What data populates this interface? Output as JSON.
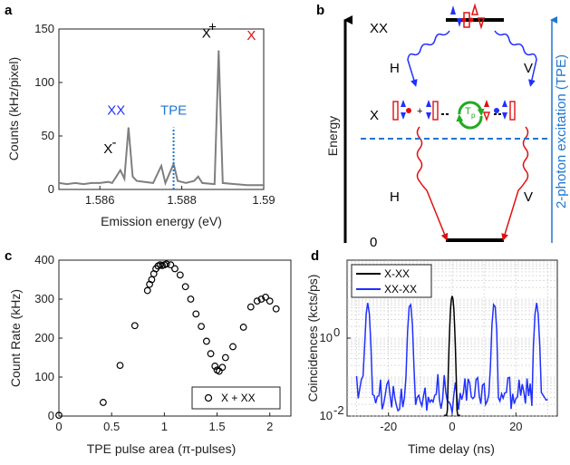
{
  "panel_letters": [
    "a",
    "b",
    "c",
    "d"
  ],
  "colors": {
    "gray": "#7f7f7f",
    "blue": "#1f30ff",
    "red": "#e01010",
    "tpe_blue": "#1f77d0",
    "green": "#22aa22"
  },
  "chart_data": [
    {
      "type": "line",
      "panel": "a",
      "xlabel": "Emission energy (eV)",
      "ylabel": "Counts (kHz/pixel)",
      "xlim": [
        1.585,
        1.59
      ],
      "ylim": [
        0,
        150
      ],
      "xticks": [
        1.586,
        1.588,
        1.59
      ],
      "xtick_labels": [
        "1.586",
        "1.588",
        "1.59"
      ],
      "yticks": [
        0,
        50,
        100,
        150
      ],
      "ytick_labels": [
        "0",
        "50",
        "100",
        "150"
      ],
      "series": [
        {
          "values": [
            [
              1.585,
              6
            ],
            [
              1.5852,
              5
            ],
            [
              1.5854,
              6
            ],
            [
              1.5856,
              5
            ],
            [
              1.5858,
              6
            ],
            [
              1.586,
              6
            ],
            [
              1.5862,
              7
            ],
            [
              1.5863,
              6
            ],
            [
              1.5865,
              18
            ],
            [
              1.5866,
              10
            ],
            [
              1.5867,
              58
            ],
            [
              1.5868,
              12
            ],
            [
              1.5869,
              8
            ],
            [
              1.5871,
              7
            ],
            [
              1.5873,
              6
            ],
            [
              1.5875,
              22
            ],
            [
              1.5876,
              6
            ],
            [
              1.5878,
              24
            ],
            [
              1.5879,
              8
            ],
            [
              1.5881,
              6
            ],
            [
              1.5883,
              8
            ],
            [
              1.5884,
              12
            ],
            [
              1.5885,
              6
            ],
            [
              1.5888,
              5
            ],
            [
              1.5889,
              130
            ],
            [
              1.589,
              6
            ],
            [
              1.5893,
              5
            ],
            [
              1.5896,
              4
            ],
            [
              1.5898,
              4
            ],
            [
              1.59,
              4
            ]
          ]
        }
      ],
      "annotations": [
        {
          "text": "XX",
          "x": 1.5864,
          "y": 70,
          "color": "#1f30ff"
        },
        {
          "text": "X",
          "x": 1.5862,
          "y": 34,
          "color": "#000000"
        },
        {
          "text": "-",
          "x": 1.58635,
          "y": 40,
          "color": "#000000"
        },
        {
          "text": "X",
          "x": 1.5886,
          "y": 142,
          "color": "#000000"
        },
        {
          "text": "+",
          "x": 1.58875,
          "y": 148,
          "color": "#000000"
        },
        {
          "text": "X",
          "x": 1.5897,
          "y": 140,
          "color": "#e01010"
        },
        {
          "text": "TPE",
          "x": 1.5878,
          "y": 70,
          "color": "#1f77d0"
        }
      ],
      "tpe_line_x": 1.5878,
      "tpe_line_ytop": 58
    },
    {
      "type": "scatter",
      "panel": "c",
      "xlabel": "TPE pulse area (π-pulses)",
      "ylabel": "Count Rate (kHz)",
      "xlim": [
        0,
        2.2
      ],
      "ylim": [
        0,
        400
      ],
      "xticks": [
        0,
        0.5,
        1,
        1.5,
        2
      ],
      "xtick_labels": [
        "0",
        "0.5",
        "1",
        "1.5",
        "2"
      ],
      "yticks": [
        0,
        100,
        200,
        300,
        400
      ],
      "ytick_labels": [
        "0",
        "100",
        "200",
        "300",
        "400"
      ],
      "legend": "X + XX",
      "legend_position": "bottom-right",
      "series": [
        {
          "name": "X + XX",
          "values": [
            [
              0,
              2
            ],
            [
              0.42,
              35
            ],
            [
              0.58,
              130
            ],
            [
              0.72,
              232
            ],
            [
              0.84,
              322
            ],
            [
              0.86,
              338
            ],
            [
              0.88,
              350
            ],
            [
              0.9,
              365
            ],
            [
              0.92,
              378
            ],
            [
              0.94,
              385
            ],
            [
              0.96,
              388
            ],
            [
              0.98,
              386
            ],
            [
              1.0,
              388
            ],
            [
              1.02,
              390
            ],
            [
              1.06,
              388
            ],
            [
              1.1,
              378
            ],
            [
              1.15,
              362
            ],
            [
              1.2,
              332
            ],
            [
              1.25,
              300
            ],
            [
              1.3,
              262
            ],
            [
              1.35,
              230
            ],
            [
              1.4,
              192
            ],
            [
              1.44,
              160
            ],
            [
              1.48,
              128
            ],
            [
              1.5,
              118
            ],
            [
              1.52,
              115
            ],
            [
              1.55,
              125
            ],
            [
              1.58,
              150
            ],
            [
              1.65,
              178
            ],
            [
              1.75,
              228
            ],
            [
              1.82,
              280
            ],
            [
              1.88,
              295
            ],
            [
              1.92,
              300
            ],
            [
              1.96,
              305
            ],
            [
              2.0,
              295
            ],
            [
              2.06,
              275
            ]
          ]
        }
      ]
    },
    {
      "type": "line",
      "panel": "d",
      "xlabel": "Time delay (ns)",
      "ylabel": "Coincidences (kcts/ps)",
      "yscale": "log",
      "xlim": [
        -33,
        33
      ],
      "ylim": [
        0.01,
        100
      ],
      "xticks": [
        -20,
        0,
        20
      ],
      "xtick_labels": [
        "-20",
        "0",
        "20"
      ],
      "yticks": [
        0.01,
        1
      ],
      "ytick_labels": [
        "10^-2",
        "10^0"
      ],
      "grid": true,
      "legend_position": "top-left",
      "peaks": {
        "X-XX": [
          [
            0,
            12
          ]
        ],
        "XX-XX": [
          [
            -26.5,
            8
          ],
          [
            -13.2,
            8
          ],
          [
            13.2,
            8
          ],
          [
            26.5,
            8
          ]
        ]
      },
      "series": [
        {
          "name": "X-XX",
          "color": "#000000"
        },
        {
          "name": "XX-XX",
          "color": "#1f30ff"
        }
      ]
    }
  ],
  "diagram_b": {
    "axis_label": "Energy",
    "levels": [
      "XX",
      "X",
      "0"
    ],
    "photon_labels": [
      "H",
      "V",
      "H",
      "V"
    ],
    "tp_label": "T",
    "tp_sub": "p",
    "side_label": "2-photon excitation (TPE)"
  }
}
